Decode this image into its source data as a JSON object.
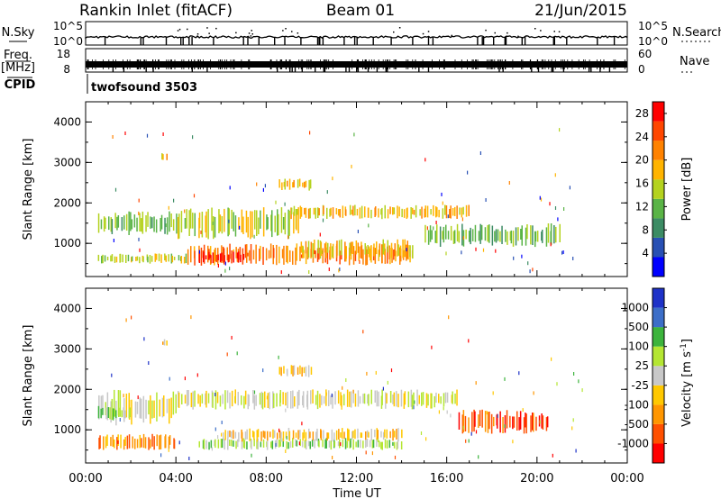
{
  "header": {
    "radar": "Rankin Inlet (fitACF)",
    "beam": "Beam 01",
    "date": "21/Jun/2015"
  },
  "strip_nsky": {
    "left_label": "N.Sky",
    "right_label": "N.Search",
    "left_ticks": [
      "10^5",
      "10^0"
    ],
    "right_ticks": [
      "10^5",
      "10^0"
    ]
  },
  "strip_freq": {
    "left_label_1": "Freq.",
    "left_label_2": "[MHz]",
    "right_label": "Nave",
    "left_ticks": [
      "18",
      "8"
    ],
    "right_ticks": [
      "60",
      "0"
    ]
  },
  "cpid": {
    "label": "CPID",
    "program": "twofsound 3503"
  },
  "colors": {
    "power_scale": [
      "#0000ff",
      "#2850b4",
      "#3c8c64",
      "#5ab446",
      "#b4d21e",
      "#ffb400",
      "#ff8200",
      "#ff4600",
      "#ff0000"
    ],
    "velocity_scale": [
      "#ff0000",
      "#ff5000",
      "#ff9600",
      "#ffc800",
      "#c8c8c8",
      "#b4e632",
      "#3cb43c",
      "#3c6ec8",
      "#1e32c8"
    ]
  },
  "chart_data": [
    {
      "type": "heatmap",
      "name": "power",
      "ylabel": "Slant Range [km]",
      "ylim": [
        180,
        4500
      ],
      "yticks": [
        "1000",
        "2000",
        "3000",
        "4000"
      ],
      "xlim_hours": [
        0,
        24
      ],
      "xticks": [
        "00:00",
        "04:00",
        "08:00",
        "12:00",
        "16:00",
        "20:00",
        "00:00"
      ],
      "colorbar": {
        "label": "Power [dB]",
        "ticks": [
          "4",
          "8",
          "12",
          "16",
          "20",
          "24",
          "28"
        ],
        "range": [
          0,
          30
        ]
      },
      "bands": [
        {
          "t0": 0.5,
          "t1": 4.0,
          "r0": 1200,
          "r1": 1800,
          "c": 3
        },
        {
          "t0": 0.5,
          "t1": 4.5,
          "r0": 500,
          "r1": 750,
          "c": 4
        },
        {
          "t0": 4.0,
          "t1": 9.5,
          "r0": 1100,
          "r1": 1900,
          "c": 4
        },
        {
          "t0": 4.5,
          "t1": 14.5,
          "r0": 450,
          "r1": 1000,
          "c": 6
        },
        {
          "t0": 5.0,
          "t1": 7.0,
          "r0": 500,
          "r1": 800,
          "c": 8
        },
        {
          "t0": 8.5,
          "t1": 10.0,
          "r0": 2300,
          "r1": 2600,
          "c": 5
        },
        {
          "t0": 9.0,
          "t1": 17.0,
          "r0": 1600,
          "r1": 1950,
          "c": 5
        },
        {
          "t0": 9.5,
          "t1": 14.5,
          "r0": 600,
          "r1": 1100,
          "c": 5
        },
        {
          "t0": 15.0,
          "t1": 21.0,
          "r0": 900,
          "r1": 1500,
          "c": 3
        },
        {
          "t0": 3.3,
          "t1": 3.6,
          "r0": 3050,
          "r1": 3250,
          "c": 5
        }
      ]
    },
    {
      "type": "heatmap",
      "name": "velocity",
      "ylabel": "Slant Range [km]",
      "ylim": [
        180,
        4500
      ],
      "yticks": [
        "1000",
        "2000",
        "3000",
        "4000"
      ],
      "xlabel": "Time UT",
      "xlim_hours": [
        0,
        24
      ],
      "xticks": [
        "00:00",
        "04:00",
        "08:00",
        "12:00",
        "16:00",
        "20:00",
        "00:00"
      ],
      "colorbar": {
        "label": "Velocity [m s^-1]",
        "ticks": [
          "1000",
          "500",
          "100",
          "25",
          "-25",
          "-100",
          "-500",
          "-1000"
        ],
        "range": [
          -1500,
          1500
        ]
      },
      "bands": [
        {
          "t0": 0.5,
          "t1": 4.0,
          "r0": 1100,
          "r1": 2000,
          "c": 4
        },
        {
          "t0": 0.5,
          "t1": 4.0,
          "r0": 500,
          "r1": 900,
          "c": 2
        },
        {
          "t0": 4.0,
          "t1": 16.5,
          "r0": 1500,
          "r1": 2000,
          "c": 4
        },
        {
          "t0": 5.0,
          "t1": 14.0,
          "r0": 500,
          "r1": 800,
          "c": 5
        },
        {
          "t0": 6.0,
          "t1": 14.0,
          "r0": 700,
          "r1": 1050,
          "c": 3
        },
        {
          "t0": 8.5,
          "t1": 10.0,
          "r0": 2300,
          "r1": 2600,
          "c": 3
        },
        {
          "t0": 16.5,
          "t1": 20.5,
          "r0": 900,
          "r1": 1500,
          "c": 1
        },
        {
          "t0": 3.3,
          "t1": 3.6,
          "r0": 3050,
          "r1": 3250,
          "c": 3
        },
        {
          "t0": 0.5,
          "t1": 2.0,
          "r0": 1250,
          "r1": 1600,
          "c": 5
        }
      ]
    }
  ]
}
